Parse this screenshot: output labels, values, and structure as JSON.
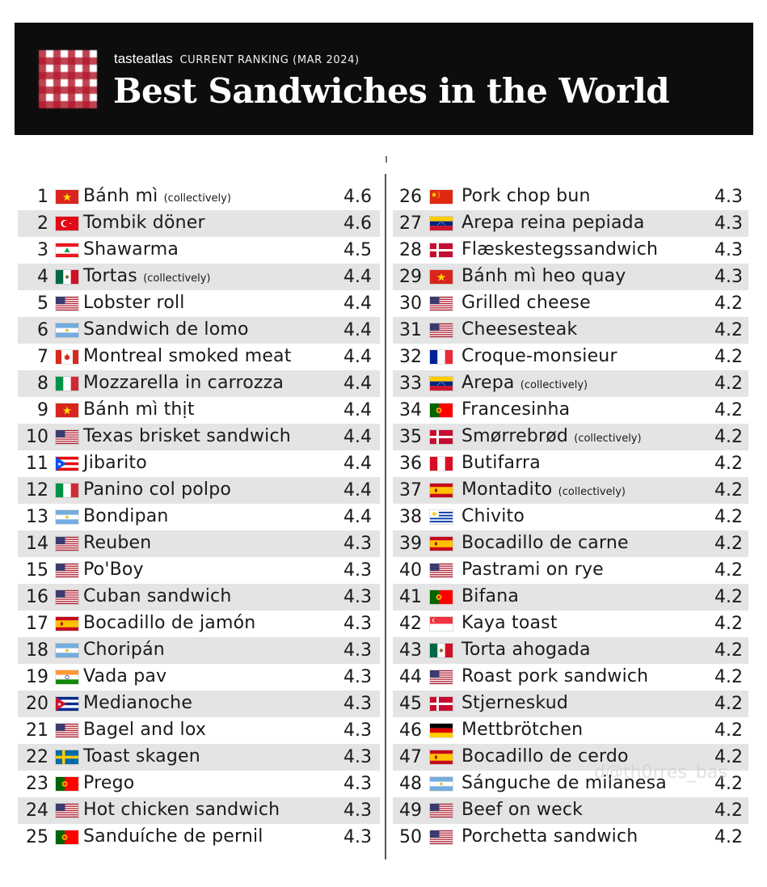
{
  "header": {
    "brand": "tasteatlas",
    "subtitle": "CURRENT RANKING (MAR 2024)",
    "title": "Best Sandwiches in the World",
    "logo_icon": "checkered-tablecloth-logo"
  },
  "watermark": "d@th0rres_bas",
  "colors": {
    "header_bg": "#0d0d0d",
    "row_alt": "#e4e4e4",
    "logo_red": "#b21a2c"
  },
  "left_column": [
    {
      "rank": "1",
      "flag": "vn",
      "name": "Bánh mì",
      "note": "(collectively)",
      "score": "4.6"
    },
    {
      "rank": "2",
      "flag": "tr",
      "name": "Tombik döner",
      "note": "",
      "score": "4.6"
    },
    {
      "rank": "3",
      "flag": "lb",
      "name": "Shawarma",
      "note": "",
      "score": "4.5"
    },
    {
      "rank": "4",
      "flag": "mx",
      "name": "Tortas",
      "note": "(collectively)",
      "score": "4.4"
    },
    {
      "rank": "5",
      "flag": "us",
      "name": "Lobster roll",
      "note": "",
      "score": "4.4"
    },
    {
      "rank": "6",
      "flag": "ar",
      "name": "Sandwich de lomo",
      "note": "",
      "score": "4.4"
    },
    {
      "rank": "7",
      "flag": "ca",
      "name": "Montreal smoked meat",
      "note": "",
      "score": "4.4"
    },
    {
      "rank": "8",
      "flag": "it",
      "name": "Mozzarella in carrozza",
      "note": "",
      "score": "4.4"
    },
    {
      "rank": "9",
      "flag": "vn",
      "name": "Bánh mì thịt",
      "note": "",
      "score": "4.4"
    },
    {
      "rank": "10",
      "flag": "us",
      "name": "Texas brisket sandwich",
      "note": "",
      "score": "4.4"
    },
    {
      "rank": "11",
      "flag": "pr",
      "name": "Jibarito",
      "note": "",
      "score": "4.4"
    },
    {
      "rank": "12",
      "flag": "it",
      "name": "Panino col polpo",
      "note": "",
      "score": "4.4"
    },
    {
      "rank": "13",
      "flag": "ar",
      "name": "Bondipan",
      "note": "",
      "score": "4.4"
    },
    {
      "rank": "14",
      "flag": "us",
      "name": "Reuben",
      "note": "",
      "score": "4.3"
    },
    {
      "rank": "15",
      "flag": "us",
      "name": "Po'Boy",
      "note": "",
      "score": "4.3"
    },
    {
      "rank": "16",
      "flag": "us",
      "name": "Cuban sandwich",
      "note": "",
      "score": "4.3"
    },
    {
      "rank": "17",
      "flag": "es",
      "name": "Bocadillo de jamón",
      "note": "",
      "score": "4.3"
    },
    {
      "rank": "18",
      "flag": "ar",
      "name": "Choripán",
      "note": "",
      "score": "4.3"
    },
    {
      "rank": "19",
      "flag": "in",
      "name": "Vada pav",
      "note": "",
      "score": "4.3"
    },
    {
      "rank": "20",
      "flag": "cu",
      "name": "Medianoche",
      "note": "",
      "score": "4.3"
    },
    {
      "rank": "21",
      "flag": "us",
      "name": "Bagel and lox",
      "note": "",
      "score": "4.3"
    },
    {
      "rank": "22",
      "flag": "se",
      "name": "Toast skagen",
      "note": "",
      "score": "4.3"
    },
    {
      "rank": "23",
      "flag": "pt",
      "name": "Prego",
      "note": "",
      "score": "4.3"
    },
    {
      "rank": "24",
      "flag": "us",
      "name": "Hot chicken sandwich",
      "note": "",
      "score": "4.3"
    },
    {
      "rank": "25",
      "flag": "pt",
      "name": "Sanduíche de pernil",
      "note": "",
      "score": "4.3"
    }
  ],
  "right_column": [
    {
      "rank": "26",
      "flag": "cn",
      "name": "Pork chop bun",
      "note": "",
      "score": "4.3"
    },
    {
      "rank": "27",
      "flag": "ve",
      "name": "Arepa reina pepiada",
      "note": "",
      "score": "4.3"
    },
    {
      "rank": "28",
      "flag": "dk",
      "name": "Flæskestegssandwich",
      "note": "",
      "score": "4.3"
    },
    {
      "rank": "29",
      "flag": "vn",
      "name": "Bánh mì heo quay",
      "note": "",
      "score": "4.3"
    },
    {
      "rank": "30",
      "flag": "us",
      "name": "Grilled cheese",
      "note": "",
      "score": "4.2"
    },
    {
      "rank": "31",
      "flag": "us",
      "name": "Cheesesteak",
      "note": "",
      "score": "4.2"
    },
    {
      "rank": "32",
      "flag": "fr",
      "name": "Croque-monsieur",
      "note": "",
      "score": "4.2"
    },
    {
      "rank": "33",
      "flag": "ve",
      "name": "Arepa",
      "note": "(collectively)",
      "score": "4.2"
    },
    {
      "rank": "34",
      "flag": "pt",
      "name": "Francesinha",
      "note": "",
      "score": "4.2"
    },
    {
      "rank": "35",
      "flag": "dk",
      "name": "Smørrebrød",
      "note": "(collectively)",
      "score": "4.2"
    },
    {
      "rank": "36",
      "flag": "pe",
      "name": "Butifarra",
      "note": "",
      "score": "4.2"
    },
    {
      "rank": "37",
      "flag": "es",
      "name": "Montadito",
      "note": "(collectively)",
      "score": "4.2"
    },
    {
      "rank": "38",
      "flag": "uy",
      "name": "Chivito",
      "note": "",
      "score": "4.2"
    },
    {
      "rank": "39",
      "flag": "es",
      "name": "Bocadillo de carne",
      "note": "",
      "score": "4.2"
    },
    {
      "rank": "40",
      "flag": "us",
      "name": "Pastrami on rye",
      "note": "",
      "score": "4.2"
    },
    {
      "rank": "41",
      "flag": "pt",
      "name": "Bifana",
      "note": "",
      "score": "4.2"
    },
    {
      "rank": "42",
      "flag": "sg",
      "name": "Kaya toast",
      "note": "",
      "score": "4.2"
    },
    {
      "rank": "43",
      "flag": "mx",
      "name": "Torta ahogada",
      "note": "",
      "score": "4.2"
    },
    {
      "rank": "44",
      "flag": "us",
      "name": "Roast pork sandwich",
      "note": "",
      "score": "4.2"
    },
    {
      "rank": "45",
      "flag": "dk",
      "name": "Stjerneskud",
      "note": "",
      "score": "4.2"
    },
    {
      "rank": "46",
      "flag": "de",
      "name": "Mettbrötchen",
      "note": "",
      "score": "4.2"
    },
    {
      "rank": "47",
      "flag": "es",
      "name": "Bocadillo de cerdo",
      "note": "",
      "score": "4.2"
    },
    {
      "rank": "48",
      "flag": "ar",
      "name": "Sánguche de milanesa",
      "note": "",
      "score": "4.2"
    },
    {
      "rank": "49",
      "flag": "us",
      "name": "Beef on weck",
      "note": "",
      "score": "4.2"
    },
    {
      "rank": "50",
      "flag": "us",
      "name": "Porchetta sandwich",
      "note": "",
      "score": "4.2"
    }
  ]
}
